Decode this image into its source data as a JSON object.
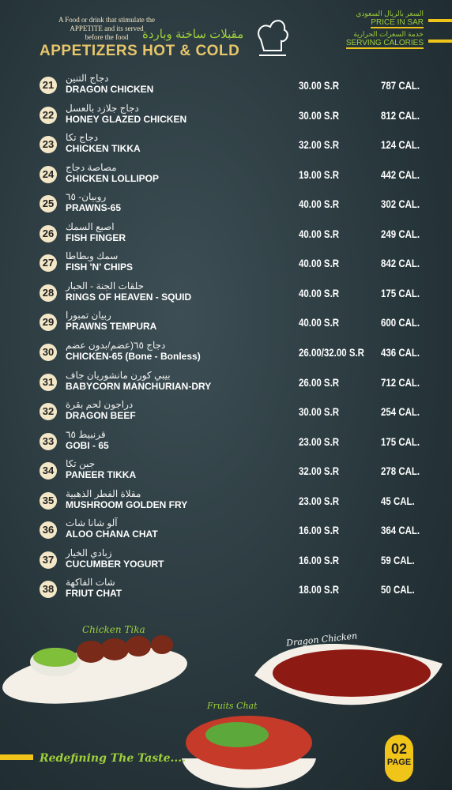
{
  "header": {
    "tagline": [
      "A Food or drink that stimulate the",
      "APPETITE and its served",
      "before the food"
    ],
    "arabic_title": "مقبلات ساخنة وباردة",
    "title": "APPETIZERS HOT & COLD",
    "price_arabic": "السعر بالريال السعودي",
    "price_label": "PRICE IN SAR",
    "calories_arabic": "خدمة السعرات الحرارية",
    "calories_label": "SERVING CALORIES"
  },
  "items": [
    {
      "number": "21",
      "arabic": "دجاج التنين",
      "name": "DRAGON CHICKEN",
      "price": "30.00 S.R",
      "calories": "787 CAL."
    },
    {
      "number": "22",
      "arabic": "دجاج جلازد بالعسل",
      "name": "HONEY GLAZED CHICKEN",
      "price": "30.00 S.R",
      "calories": "812 CAL."
    },
    {
      "number": "23",
      "arabic": "دجاج تكا",
      "name": "CHICKEN TIKKA",
      "price": "32.00 S.R",
      "calories": "124 CAL."
    },
    {
      "number": "24",
      "arabic": "مصاصة دجاج",
      "name": "CHICKEN LOLLIPOP",
      "price": "19.00 S.R",
      "calories": "442 CAL."
    },
    {
      "number": "25",
      "arabic": "روبيان- ٦٥",
      "name": "PRAWNS-65",
      "price": "40.00 S.R",
      "calories": "302 CAL."
    },
    {
      "number": "26",
      "arabic": "اصبع السمك",
      "name": "FISH FINGER",
      "price": "40.00 S.R",
      "calories": "249 CAL."
    },
    {
      "number": "27",
      "arabic": "سمك وبطاطا",
      "name": "FISH 'N' CHIPS",
      "price": "40.00 S.R",
      "calories": "842 CAL."
    },
    {
      "number": "28",
      "arabic": "حلقات الجنة - الحبار",
      "name": "RINGS OF HEAVEN - SQUID",
      "price": "40.00 S.R",
      "calories": "175 CAL."
    },
    {
      "number": "29",
      "arabic": "ربيان تمبورا",
      "name": "PRAWNS TEMPURA",
      "price": "40.00 S.R",
      "calories": "600 CAL."
    },
    {
      "number": "30",
      "arabic": "دجاج ٦٥(عضم/بدون عضم",
      "name": "CHICKEN-65 (Bone - Bonless)",
      "price": "26.00/32.00 S.R",
      "calories": "436 CAL."
    },
    {
      "number": "31",
      "arabic": "بيبي كورن مانشوريان جاف",
      "name": "BABYCORN MANCHURIAN-DRY",
      "price": "26.00 S.R",
      "calories": "712 CAL."
    },
    {
      "number": "32",
      "arabic": "دراجون لحم بقرة",
      "name": "DRAGON BEEF",
      "price": "30.00 S.R",
      "calories": "254 CAL."
    },
    {
      "number": "33",
      "arabic": "قرنبيط ٦٥",
      "name": "GOBI - 65",
      "price": "23.00 S.R",
      "calories": "175 CAL."
    },
    {
      "number": "34",
      "arabic": "جبن تكا",
      "name": "PANEER TIKKA",
      "price": "32.00 S.R",
      "calories": "278 CAL."
    },
    {
      "number": "35",
      "arabic": "مقلاة الفطر الذهبية",
      "name": "MUSHROOM GOLDEN FRY",
      "price": "23.00 S.R",
      "calories": "45 CAL."
    },
    {
      "number": "36",
      "arabic": "آلو شانا شات",
      "name": "ALOO CHANA CHAT",
      "price": "16.00 S.R",
      "calories": "364 CAL."
    },
    {
      "number": "37",
      "arabic": "زبادي الخيار",
      "name": "CUCUMBER YOGURT",
      "price": "16.00 S.R",
      "calories": "59 CAL."
    },
    {
      "number": "38",
      "arabic": "شات الفاكهة",
      "name": "FRIUT CHAT",
      "price": "18.00 S.R",
      "calories": "50 CAL."
    }
  ],
  "images": [
    {
      "label": "Chicken Tika"
    },
    {
      "label": "Dragon Chicken"
    },
    {
      "label": "Fruits Chat"
    }
  ],
  "footer": {
    "slogan": "Redefining The Taste....",
    "page_number": "02",
    "page_label": "PAGE"
  }
}
